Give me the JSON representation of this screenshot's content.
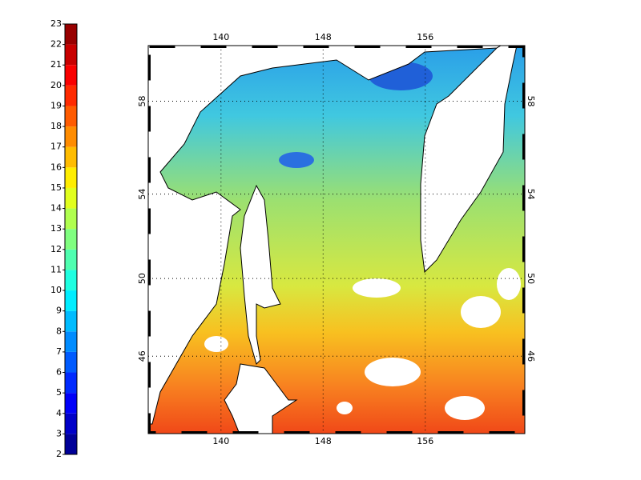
{
  "colorbar": {
    "lim": [
      2,
      23
    ],
    "ticks": [
      2,
      3,
      4,
      5,
      6,
      7,
      8,
      9,
      10,
      11,
      12,
      13,
      14,
      15,
      16,
      17,
      18,
      19,
      20,
      21,
      22,
      23
    ]
  },
  "map": {
    "xlim": [
      134.3,
      163.8
    ],
    "ylim": [
      41.7,
      60.2
    ],
    "xticks": [
      140,
      148,
      156
    ],
    "yticks": [
      46,
      50,
      54,
      58
    ],
    "grid": true
  }
}
